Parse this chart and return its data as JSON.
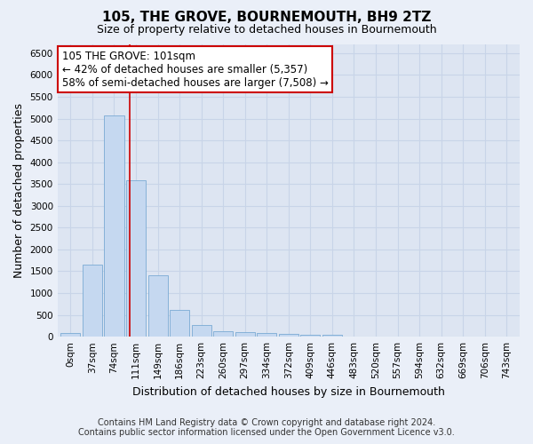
{
  "title": "105, THE GROVE, BOURNEMOUTH, BH9 2TZ",
  "subtitle": "Size of property relative to detached houses in Bournemouth",
  "xlabel": "Distribution of detached houses by size in Bournemouth",
  "ylabel": "Number of detached properties",
  "footer_line1": "Contains HM Land Registry data © Crown copyright and database right 2024.",
  "footer_line2": "Contains public sector information licensed under the Open Government Licence v3.0.",
  "categories": [
    "0sqm",
    "37sqm",
    "74sqm",
    "111sqm",
    "149sqm",
    "186sqm",
    "223sqm",
    "260sqm",
    "297sqm",
    "334sqm",
    "372sqm",
    "409sqm",
    "446sqm",
    "483sqm",
    "520sqm",
    "557sqm",
    "594sqm",
    "632sqm",
    "669sqm",
    "706sqm",
    "743sqm"
  ],
  "bar_values": [
    75,
    1650,
    5075,
    3580,
    1410,
    620,
    265,
    135,
    100,
    75,
    55,
    50,
    35,
    0,
    0,
    0,
    0,
    0,
    0,
    0,
    0
  ],
  "bar_color": "#c5d8f0",
  "bar_edge_color": "#7aaad4",
  "bar_width": 0.9,
  "vline_x": 2.72,
  "vline_color": "#cc0000",
  "annotation_text": "105 THE GROVE: 101sqm\n← 42% of detached houses are smaller (5,357)\n58% of semi-detached houses are larger (7,508) →",
  "ylim": [
    0,
    6700
  ],
  "yticks": [
    0,
    500,
    1000,
    1500,
    2000,
    2500,
    3000,
    3500,
    4000,
    4500,
    5000,
    5500,
    6000,
    6500
  ],
  "grid_color": "#c8d4e8",
  "bg_color": "#eaeff8",
  "plot_bg_color": "#dde5f2",
  "title_fontsize": 11,
  "subtitle_fontsize": 9,
  "axis_label_fontsize": 9,
  "tick_fontsize": 7.5,
  "annotation_fontsize": 8.5,
  "footer_fontsize": 7
}
